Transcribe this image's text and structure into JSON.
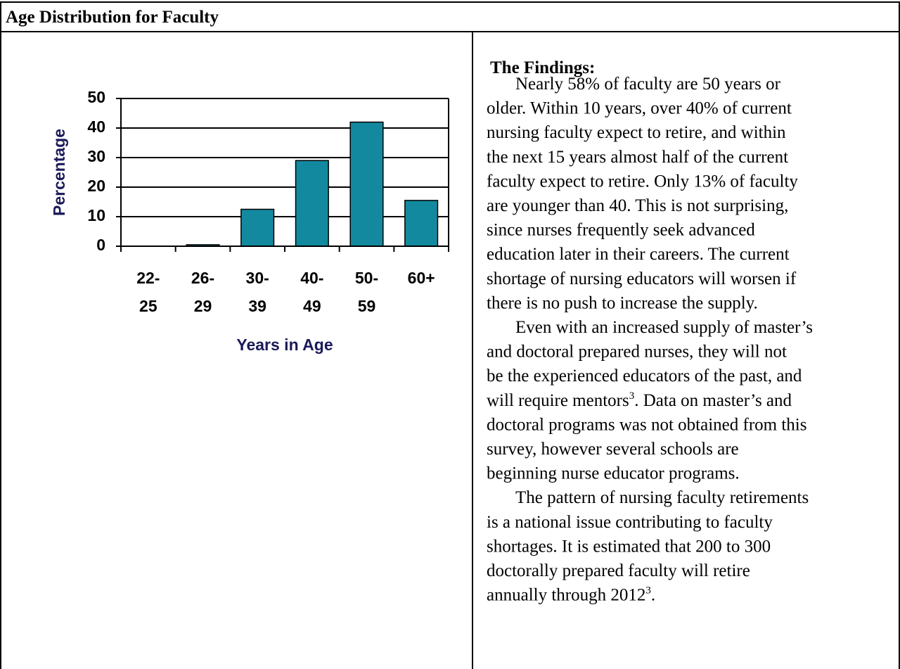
{
  "header": {
    "title": "Age Distribution for Faculty"
  },
  "chart_data": {
    "type": "bar",
    "categories": [
      [
        "22-",
        "25"
      ],
      [
        "26-",
        "29"
      ],
      [
        "30-",
        "39"
      ],
      [
        "40-",
        "49"
      ],
      [
        "50-",
        "59"
      ],
      [
        "60+"
      ]
    ],
    "values": [
      0,
      0.5,
      12.5,
      29,
      42,
      15.5
    ],
    "color": "#13899f",
    "ylim": [
      0,
      50
    ],
    "yticks": [
      0,
      10,
      20,
      30,
      40,
      50
    ],
    "grid": true,
    "ylabel": "Percentage",
    "xlabel": "Years in Age"
  },
  "findings": {
    "heading": "The Findings:",
    "paragraphs": [
      [
        "Nearly 58% of faculty are 50 years or",
        "older.  Within 10 years, over 40% of current",
        "nursing faculty expect to retire, and within",
        "the next 15 years almost half of the current",
        "faculty expect to retire.  Only 13% of faculty",
        "are younger than 40.  This is not surprising,",
        "since nurses frequently seek advanced",
        "education later in their careers. The current",
        "shortage of nursing educators will worsen if",
        "there is no push to increase the supply."
      ],
      [
        "Even with an increased supply of master’s",
        "and doctoral prepared nurses, they will not",
        "be the experienced educators of the past, and",
        {
          "text": "will require mentors",
          "sup": "3",
          "tail": ".  Data on master’s and"
        },
        "doctoral programs was not obtained from this",
        "survey, however several schools are",
        "beginning nurse educator programs."
      ],
      [
        "The pattern of nursing faculty retirements",
        "is a national issue contributing to faculty",
        "shortages.  It is estimated that 200 to 300",
        "doctorally prepared faculty will retire",
        {
          "text": "annually through 2012",
          "sup": "3",
          "tail": "."
        }
      ]
    ]
  }
}
